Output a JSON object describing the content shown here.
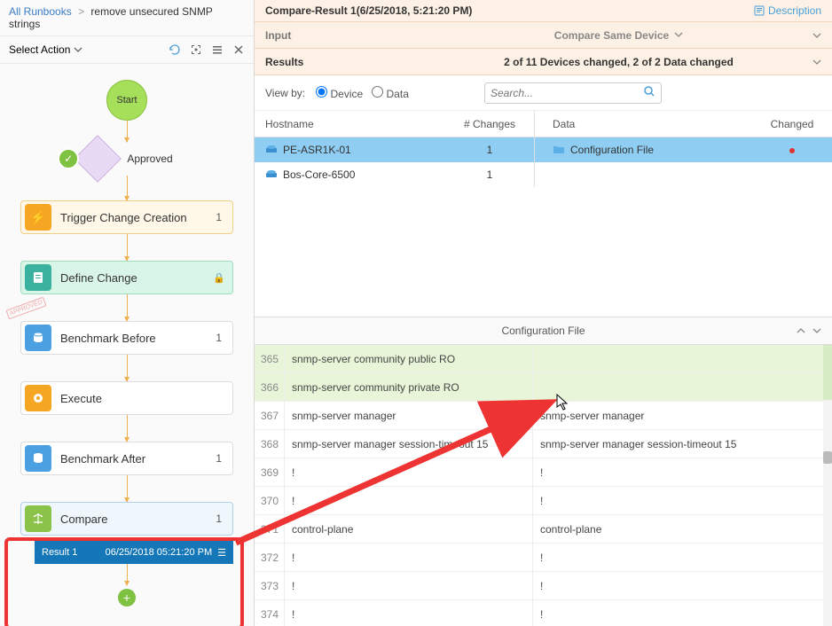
{
  "breadcrumb": {
    "root": "All Runbooks",
    "current": "remove unsecured SNMP strings"
  },
  "select_action": "Select Action",
  "flowchart": {
    "start": "Start",
    "approved": "Approved",
    "trigger": {
      "label": "Trigger Change Creation",
      "count": "1"
    },
    "define": {
      "label": "Define Change"
    },
    "bench_before": {
      "label": "Benchmark Before",
      "count": "1"
    },
    "execute": {
      "label": "Execute"
    },
    "bench_after": {
      "label": "Benchmark After",
      "count": "1"
    },
    "compare": {
      "label": "Compare",
      "count": "1"
    },
    "result": {
      "label": "Result 1",
      "ts": "06/25/2018 05:21:20 PM"
    }
  },
  "right": {
    "title": "Compare-Result 1(6/25/2018, 5:21:20 PM)",
    "description": "Description",
    "input_label": "Input",
    "compare_mode": "Compare Same Device",
    "results_label": "Results",
    "results_summary": "2 of 11 Devices changed,  2 of 2 Data changed",
    "view_by": "View by:",
    "radio_device": "Device",
    "radio_data": "Data",
    "search_ph": "Search...",
    "cols": {
      "hostname": "Hostname",
      "changes": "# Changes",
      "data": "Data",
      "changed": "Changed"
    },
    "hosts": [
      {
        "name": "PE-ASR1K-01",
        "changes": "1",
        "data": "Configuration File",
        "selected": true,
        "changed_dot": true
      },
      {
        "name": "Bos-Core-6500",
        "changes": "1",
        "selected": false
      }
    ],
    "config_title": "Configuration File",
    "diff": [
      {
        "n": "365",
        "l": "snmp-server community public RO",
        "r": "",
        "removed": true
      },
      {
        "n": "366",
        "l": "snmp-server community private RO",
        "r": "",
        "removed": true
      },
      {
        "n": "367",
        "l": "snmp-server manager",
        "r": "snmp-server manager"
      },
      {
        "n": "368",
        "l": "snmp-server manager session-timeout 15",
        "r": "snmp-server manager session-timeout 15"
      },
      {
        "n": "369",
        "l": "!",
        "r": "!"
      },
      {
        "n": "370",
        "l": "!",
        "r": "!"
      },
      {
        "n": "371",
        "l": "control-plane",
        "r": "control-plane"
      },
      {
        "n": "372",
        "l": "!",
        "r": "!"
      },
      {
        "n": "373",
        "l": "!",
        "r": "!"
      },
      {
        "n": "374",
        "l": "!",
        "r": "!"
      }
    ]
  }
}
